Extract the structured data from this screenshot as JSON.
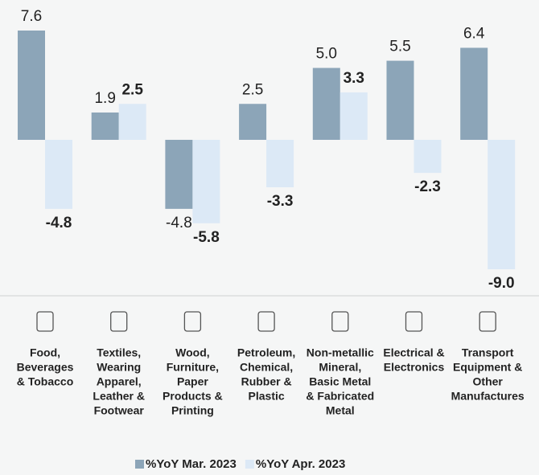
{
  "chart_data": {
    "type": "bar",
    "categories": [
      [
        "Food,",
        "Beverages",
        "& Tobacco"
      ],
      [
        "Textiles,",
        "Wearing",
        "Apparel,",
        "Leather &",
        "Footwear"
      ],
      [
        "Wood,",
        "Furniture,",
        "Paper",
        "Products &",
        "Printing"
      ],
      [
        "Petroleum,",
        "Chemical,",
        "Rubber &",
        "Plastic"
      ],
      [
        "Non-metallic",
        "Mineral,",
        "Basic Metal",
        "& Fabricated",
        "Metal"
      ],
      [
        "Electrical &",
        "Electronics"
      ],
      [
        "Transport",
        "Equipment &",
        "Other",
        "Manufactures"
      ]
    ],
    "series": [
      {
        "name": "%YoY Mar. 2023",
        "color": "#8ca5b8",
        "values": [
          7.6,
          1.9,
          -4.8,
          2.5,
          5.0,
          5.5,
          6.4
        ],
        "value_labels": [
          "7.6",
          "1.9",
          "-4.8",
          "2.5",
          "5.0",
          "5.5",
          "6.4"
        ]
      },
      {
        "name": "%YoY Apr. 2023",
        "color": "#dce9f6",
        "values": [
          -4.8,
          2.5,
          -5.8,
          -3.3,
          3.3,
          -2.3,
          -9.0
        ],
        "value_labels": [
          "-4.8",
          "2.5",
          "-5.8",
          "-3.3",
          "3.3",
          "-2.3",
          "-9.0"
        ]
      }
    ]
  }
}
